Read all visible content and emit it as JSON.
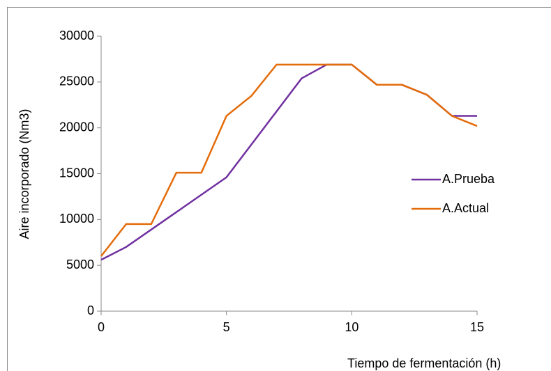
{
  "chart_data": {
    "type": "line",
    "y_label": "Aire incorporado (Nm3)",
    "x_label": "Tiempo de fermentación (h)",
    "x": [
      0,
      1,
      2,
      3,
      4,
      5,
      6,
      7,
      8,
      9,
      10,
      11,
      12,
      13,
      14,
      15
    ],
    "series": [
      {
        "name": "A.Prueba",
        "color": "#7030a0",
        "values": [
          5600,
          7000,
          8900,
          10800,
          12700,
          14600,
          18200,
          21800,
          25400,
          26900,
          26900,
          24700,
          24700,
          23600,
          21300,
          21300
        ]
      },
      {
        "name": "A.Actual",
        "color": "#e46c0a",
        "values": [
          6000,
          9500,
          9500,
          15100,
          15100,
          21300,
          23500,
          26900,
          26900,
          26900,
          26900,
          24700,
          24700,
          23600,
          21300,
          20200
        ]
      }
    ],
    "xlim": [
      0,
      15
    ],
    "xticks": [
      0,
      5,
      10,
      15
    ],
    "ylim": [
      0,
      30000
    ],
    "yticks": [
      0,
      5000,
      10000,
      15000,
      20000,
      25000,
      30000
    ],
    "grid": false,
    "legend": "right"
  }
}
